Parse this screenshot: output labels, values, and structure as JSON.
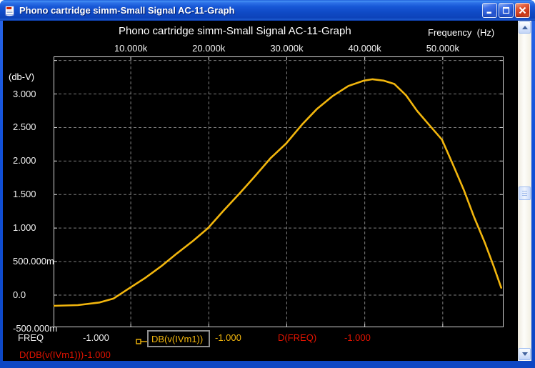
{
  "window": {
    "title": "Phono cartridge simm-Small Signal AC-11-Graph",
    "icon": "document-icon",
    "controls": {
      "minimize": "minimize",
      "maximize": "maximize",
      "close": "close"
    }
  },
  "chart_data": {
    "type": "line",
    "title": "Phono cartridge simm-Small Signal AC-11-Graph",
    "x_axis_unit": "Frequency  (Hz)",
    "y_axis_unit": "(db-V)",
    "xlim": [
      100,
      57800
    ],
    "ylim": [
      -0.48,
      3.56
    ],
    "grid": true,
    "x_ticks": [
      {
        "value": 10000,
        "label": "10.000k"
      },
      {
        "value": 20000,
        "label": "20.000k"
      },
      {
        "value": 30000,
        "label": "30.000k"
      },
      {
        "value": 40000,
        "label": "40.000k"
      },
      {
        "value": 50000,
        "label": "50.000k"
      }
    ],
    "y_ticks": [
      {
        "value": 3.5,
        "label": ""
      },
      {
        "value": 3.0,
        "label": "3.000"
      },
      {
        "value": 2.5,
        "label": "2.500"
      },
      {
        "value": 2.0,
        "label": "2.000"
      },
      {
        "value": 1.5,
        "label": "1.500"
      },
      {
        "value": 1.0,
        "label": "1.000"
      },
      {
        "value": 0.5,
        "label": "500.000m"
      },
      {
        "value": 0.0,
        "label": "0.0"
      },
      {
        "value": -0.5,
        "label": "-500.000m"
      }
    ],
    "series": [
      {
        "name": "DB(v(IVm1))",
        "color": "#f2b60d",
        "points": [
          [
            100,
            -0.16
          ],
          [
            3200,
            -0.15
          ],
          [
            6000,
            -0.11
          ],
          [
            7800,
            -0.05
          ],
          [
            9900,
            0.11
          ],
          [
            11900,
            0.26
          ],
          [
            13900,
            0.43
          ],
          [
            15900,
            0.62
          ],
          [
            18000,
            0.81
          ],
          [
            19900,
            1.0
          ],
          [
            21900,
            1.26
          ],
          [
            23900,
            1.51
          ],
          [
            25900,
            1.77
          ],
          [
            27900,
            2.04
          ],
          [
            29900,
            2.26
          ],
          [
            32000,
            2.55
          ],
          [
            33900,
            2.78
          ],
          [
            35900,
            2.97
          ],
          [
            37900,
            3.12
          ],
          [
            39900,
            3.2
          ],
          [
            41000,
            3.22
          ],
          [
            42400,
            3.2
          ],
          [
            43800,
            3.15
          ],
          [
            45300,
            2.98
          ],
          [
            46700,
            2.75
          ],
          [
            48100,
            2.56
          ],
          [
            49900,
            2.32
          ],
          [
            51300,
            1.95
          ],
          [
            52700,
            1.57
          ],
          [
            54000,
            1.17
          ],
          [
            55400,
            0.78
          ],
          [
            56500,
            0.44
          ],
          [
            57500,
            0.11
          ]
        ]
      }
    ]
  },
  "legend": {
    "row1": {
      "x_name": "FREQ",
      "x_value": "-1.000",
      "series_name": "DB(v(IVm1))",
      "series_value": "-1.000",
      "d1_name": "D(FREQ)",
      "d1_value": "-1.000"
    },
    "row2": {
      "d2_name": "D(DB(v(IVm1)))",
      "d2_value": "-1.000"
    }
  },
  "colors": {
    "background": "#000000",
    "curve": "#f2b60d",
    "red_trace": "#e41300",
    "grid": "#7f7f7f",
    "frame": "#d6d6d6",
    "text": "#f2f2f2",
    "selection_box_border": "#8f8f8f",
    "titlebar_blue": "#1653d4"
  },
  "icons": {
    "window": "document-icon",
    "scroll_up": "chevron-up-icon",
    "scroll_down": "chevron-down-icon",
    "series_marker": "series-marker-icon"
  }
}
